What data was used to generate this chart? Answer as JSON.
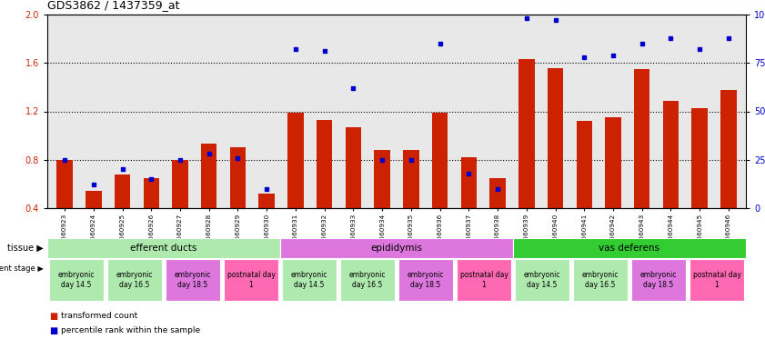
{
  "title": "GDS3862 / 1437359_at",
  "samples": [
    "GSM560923",
    "GSM560924",
    "GSM560925",
    "GSM560926",
    "GSM560927",
    "GSM560928",
    "GSM560929",
    "GSM560930",
    "GSM560931",
    "GSM560932",
    "GSM560933",
    "GSM560934",
    "GSM560935",
    "GSM560936",
    "GSM560937",
    "GSM560938",
    "GSM560939",
    "GSM560940",
    "GSM560941",
    "GSM560942",
    "GSM560943",
    "GSM560944",
    "GSM560945",
    "GSM560946"
  ],
  "red_values": [
    0.8,
    0.54,
    0.68,
    0.65,
    0.8,
    0.93,
    0.9,
    0.52,
    1.19,
    1.13,
    1.07,
    0.88,
    0.88,
    1.19,
    0.82,
    0.65,
    1.63,
    1.56,
    1.12,
    1.15,
    1.55,
    1.29,
    1.23,
    1.38
  ],
  "blue_pct": [
    25,
    12,
    20,
    15,
    25,
    28,
    26,
    10,
    82,
    81,
    62,
    25,
    25,
    85,
    18,
    10,
    98,
    97,
    78,
    79,
    85,
    88,
    82,
    88
  ],
  "ylim": [
    0.4,
    2.0
  ],
  "yticks": [
    0.4,
    0.8,
    1.2,
    1.6,
    2.0
  ],
  "right_yticks": [
    0,
    25,
    50,
    75,
    100
  ],
  "right_ytick_labels": [
    "0",
    "25",
    "50",
    "75",
    "100%"
  ],
  "dotted_lines": [
    0.8,
    1.2,
    1.6
  ],
  "tissue_groups": [
    {
      "label": "efferent ducts",
      "start": 0,
      "end": 8,
      "color": "#aeeaae"
    },
    {
      "label": "epididymis",
      "start": 8,
      "end": 16,
      "color": "#dd77dd"
    },
    {
      "label": "vas deferens",
      "start": 16,
      "end": 24,
      "color": "#33cc33"
    }
  ],
  "dev_stage_groups": [
    {
      "label": "embryonic\nday 14.5",
      "start": 0,
      "end": 2,
      "color": "#aeeaae"
    },
    {
      "label": "embryonic\nday 16.5",
      "start": 2,
      "end": 4,
      "color": "#aeeaae"
    },
    {
      "label": "embryonic\nday 18.5",
      "start": 4,
      "end": 6,
      "color": "#dd77dd"
    },
    {
      "label": "postnatal day\n1",
      "start": 6,
      "end": 8,
      "color": "#ff69b4"
    },
    {
      "label": "embryonic\nday 14.5",
      "start": 8,
      "end": 10,
      "color": "#aeeaae"
    },
    {
      "label": "embryonic\nday 16.5",
      "start": 10,
      "end": 12,
      "color": "#aeeaae"
    },
    {
      "label": "embryonic\nday 18.5",
      "start": 12,
      "end": 14,
      "color": "#dd77dd"
    },
    {
      "label": "postnatal day\n1",
      "start": 14,
      "end": 16,
      "color": "#ff69b4"
    },
    {
      "label": "embryonic\nday 14.5",
      "start": 16,
      "end": 18,
      "color": "#aeeaae"
    },
    {
      "label": "embryonic\nday 16.5",
      "start": 18,
      "end": 20,
      "color": "#aeeaae"
    },
    {
      "label": "embryonic\nday 18.5",
      "start": 20,
      "end": 22,
      "color": "#dd77dd"
    },
    {
      "label": "postnatal day\n1",
      "start": 22,
      "end": 24,
      "color": "#ff69b4"
    }
  ],
  "bar_color": "#cc2200",
  "dot_color": "#0000cc",
  "background_color": "#ffffff",
  "plot_bg_color": "#e8e8e8",
  "legend_red": "transformed count",
  "legend_blue": "percentile rank within the sample",
  "fig_width": 8.41,
  "fig_height": 3.84,
  "dpi": 100
}
